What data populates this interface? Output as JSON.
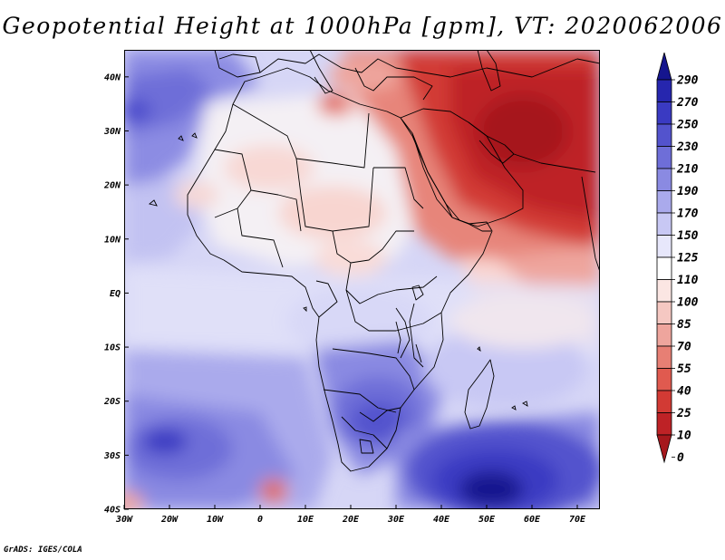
{
  "title": "Geopotential Height at 1000hPa [gpm], VT: 2020062006",
  "footer": "GrADS: IGES/COLA",
  "axes": {
    "lat_ticks": [
      "40N",
      "30N",
      "20N",
      "10N",
      "EQ",
      "10S",
      "20S",
      "30S",
      "40S"
    ],
    "lon_ticks": [
      "30W",
      "20W",
      "10W",
      "0",
      "10E",
      "20E",
      "30E",
      "40E",
      "50E",
      "60E",
      "70E"
    ]
  },
  "chart_data": {
    "type": "heatmap",
    "title": "Geopotential Height at 1000hPa [gpm], VT: 2020062006",
    "variable": "Geopotential Height at 1000hPa",
    "units": "gpm",
    "valid_time": "2020062006",
    "lon_range": [
      -30,
      75
    ],
    "lat_range": [
      -40,
      45
    ],
    "colorbar": {
      "levels": [
        0,
        10,
        25,
        40,
        55,
        70,
        85,
        100,
        110,
        125,
        150,
        170,
        190,
        210,
        230,
        250,
        270,
        290
      ],
      "colors": [
        "#a6181d",
        "#be2226",
        "#d23a34",
        "#e05a4f",
        "#e77f74",
        "#eea59d",
        "#f5c8c2",
        "#fbe6e3",
        "#ffffff",
        "#e7e7fb",
        "#c8c8f4",
        "#aaaaec",
        "#8a8ae2",
        "#6e6ed8",
        "#5353cd",
        "#3a3ac2",
        "#2626ae",
        "#15158e"
      ],
      "labels": [
        "0",
        "10",
        "25",
        "40",
        "55",
        "70",
        "85",
        "100",
        "110",
        "125",
        "150",
        "170",
        "190",
        "210",
        "230",
        "250",
        "270",
        "290"
      ]
    }
  }
}
